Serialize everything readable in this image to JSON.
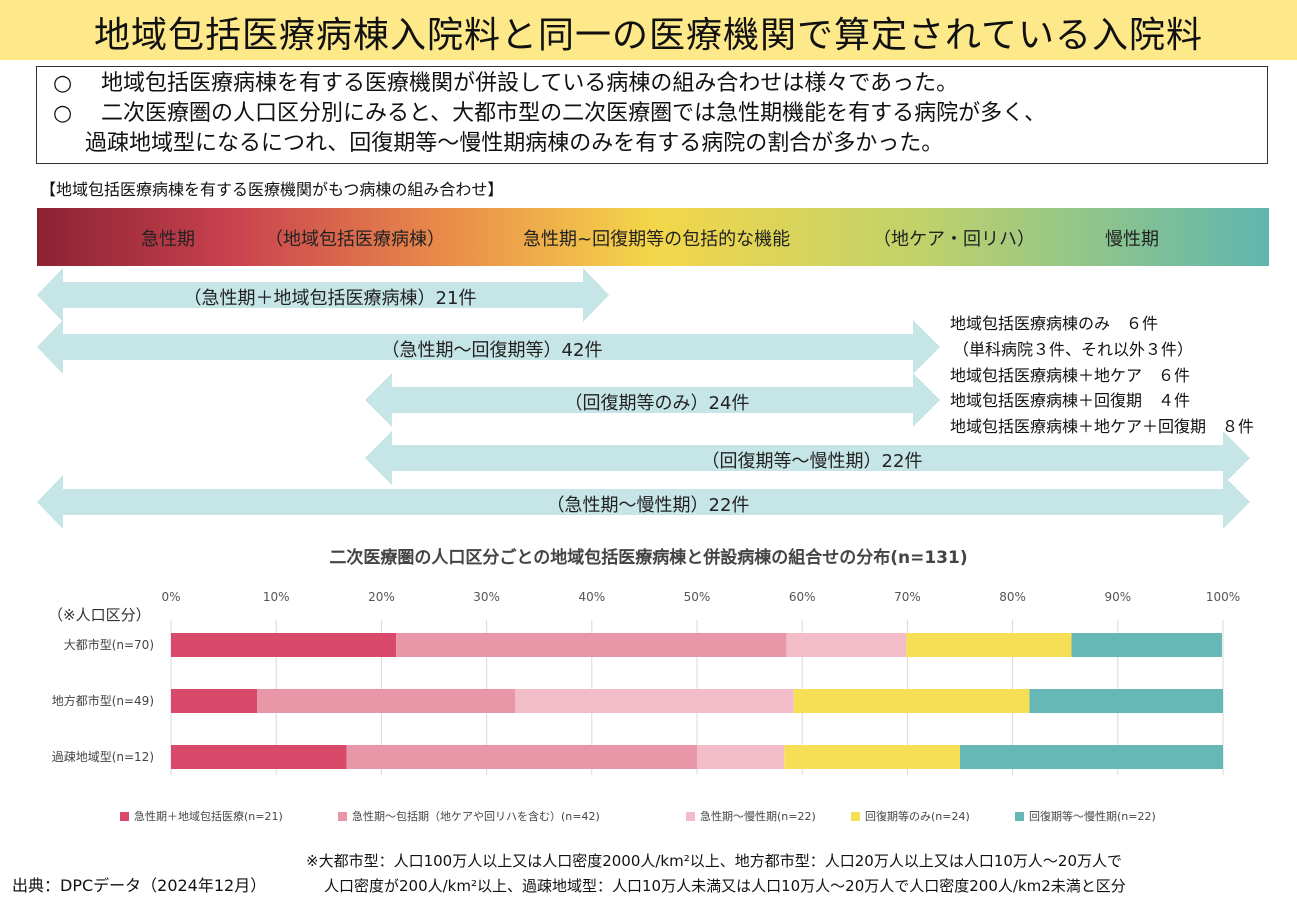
{
  "title": "地域包括医療病棟入院料と同一の医療機関で算定されている入院料",
  "summary": [
    {
      "marker": "○",
      "text": "地域包括医療病棟を有する医療機関が併設している病棟の組み合わせは様々であった。"
    },
    {
      "marker": "○",
      "text": "二次医療圏の人口区分別にみると、大都市型の二次医療圏では急性期機能を有する病院が多く、"
    },
    {
      "marker": "",
      "text": "過疎地域型になるにつれ、回復期等～慢性期病棟のみを有する病院の割合が多かった。"
    }
  ],
  "section_heading": "【地域包括医療病棟を有する医療機関がもつ病棟の組み合わせ】",
  "gradient_labels": [
    "急性期",
    "（地域包括医療病棟）",
    "急性期~回復期等の包括的な機能",
    "（地ケア・回リハ）",
    "慢性期"
  ],
  "arrows": [
    {
      "label": "（急性期＋地域包括医療病棟）21件"
    },
    {
      "label": "（急性期～回復期等）42件"
    },
    {
      "label": "（回復期等のみ）24件"
    },
    {
      "label": "（回復期等～慢性期）22件"
    },
    {
      "label": "（急性期～慢性期）22件"
    }
  ],
  "side_notes": [
    "地域包括医療病棟のみ　６件",
    "（単科病院３件、それ以外３件）",
    "地域包括医療病棟＋地ケア　６件",
    "地域包括医療病棟＋回復期　４件",
    "地域包括医療病棟＋地ケア＋回復期　８件"
  ],
  "chart_data": {
    "type": "bar",
    "orientation": "horizontal",
    "stacked": true,
    "title": "二次医療圏の人口区分ごとの地域包括医療病棟と併設病棟の組合せの分布(n=131)",
    "category_axis_label": "（※人口区分）",
    "categories": [
      "大都市型(n=70)",
      "地方都市型(n=49)",
      "過疎地域型(n=12)"
    ],
    "x_ticks": [
      "0%",
      "10%",
      "20%",
      "30%",
      "40%",
      "50%",
      "60%",
      "70%",
      "80%",
      "90%",
      "100%"
    ],
    "xlim": [
      0,
      100
    ],
    "grid": true,
    "legend_position": "bottom",
    "series": [
      {
        "name": "急性期＋地域包括医療(n=21)",
        "color": "#d94a6a",
        "values": [
          21.4,
          8.2,
          16.7
        ]
      },
      {
        "name": "急性期～包括期（地ケアや回リハを含む）(n=42)",
        "color": "#e996a8",
        "values": [
          37.1,
          24.5,
          33.3
        ]
      },
      {
        "name": "急性期～慢性期(n=22)",
        "color": "#f2bcc8",
        "values": [
          11.4,
          26.5,
          8.3
        ]
      },
      {
        "name": "回復期等のみ(n=24)",
        "color": "#f7df55",
        "values": [
          15.7,
          22.4,
          16.7
        ]
      },
      {
        "name": "回復期等～慢性期(n=22)",
        "color": "#66b8b6",
        "values": [
          14.3,
          18.4,
          25.0
        ]
      }
    ]
  },
  "source": "出典：DPCデータ（2024年12月）",
  "notes": [
    "※大都市型：人口100万人以上又は人口密度2000人/km²以上、地方都市型：人口20万人以上又は人口10万人～20万人で",
    "人口密度が200人/km²以上、過疎地域型：人口10万人未満又は人口10万人～20万人で人口密度200人/km2未満と区分"
  ]
}
